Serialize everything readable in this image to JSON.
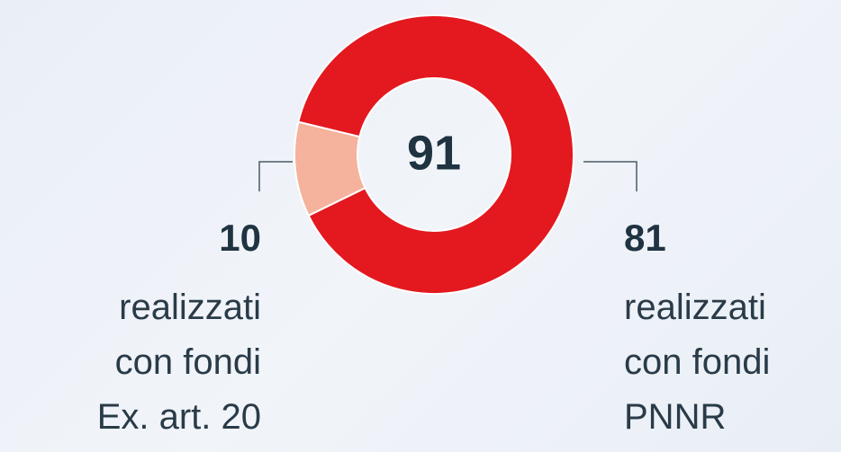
{
  "chart_data": {
    "type": "donut",
    "total": "91",
    "categories": [
      "realizzati\ncon fondi\nEx. art. 20",
      "realizzati\ncon fondi\nPNNR"
    ],
    "values": [
      10,
      81
    ],
    "colors": [
      "#f5b29c",
      "#e3191f"
    ]
  }
}
